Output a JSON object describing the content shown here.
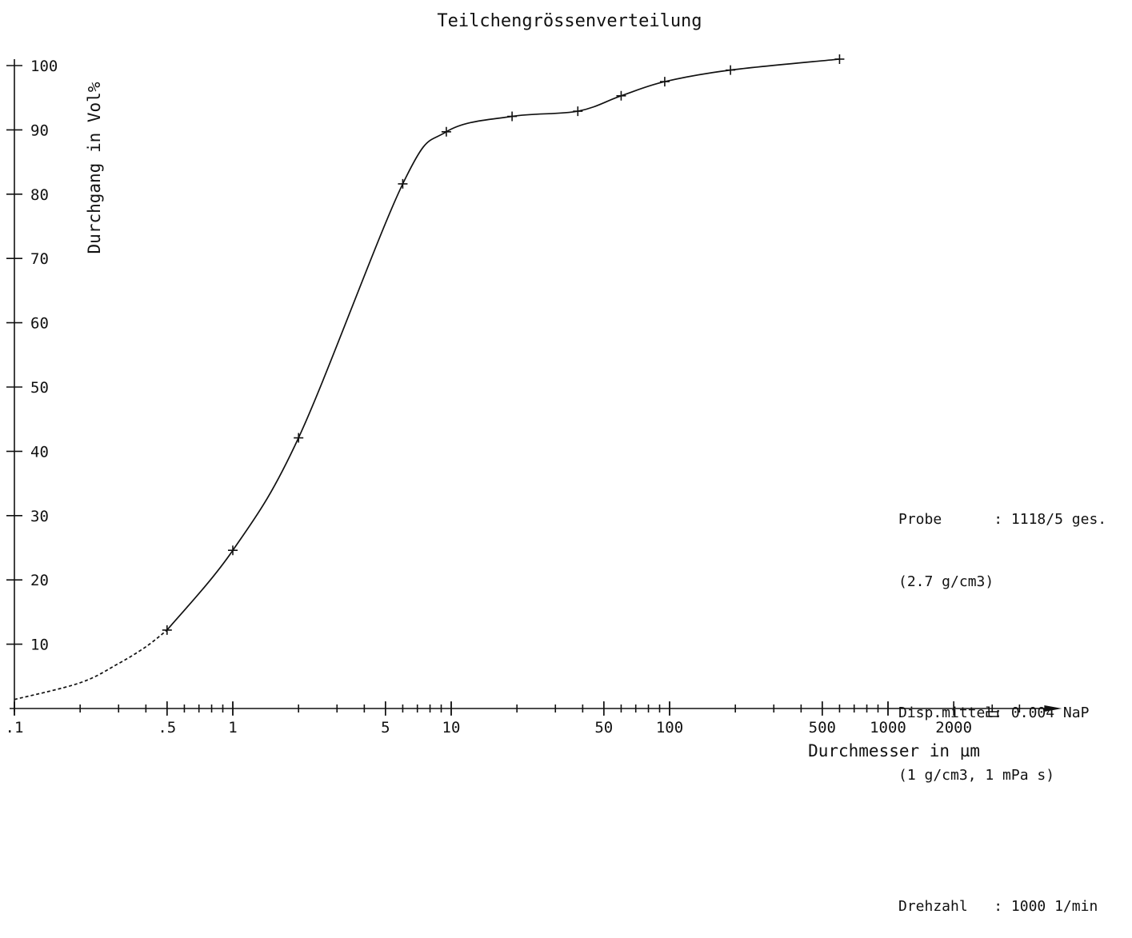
{
  "chart_data": {
    "type": "line",
    "title": "Teilchengrössenverteilung",
    "xlabel": "Durchmesser in µm",
    "ylabel": "Durchgang in Vol%",
    "xscale": "log",
    "xlim": [
      0.1,
      4000
    ],
    "ylim": [
      0,
      100
    ],
    "grid": false,
    "x_ticks": [
      ".1",
      ".5",
      "1",
      "5",
      "10",
      "50",
      "100",
      "500",
      "1000",
      "2000"
    ],
    "x_tick_values": [
      0.1,
      0.5,
      1,
      5,
      10,
      50,
      100,
      500,
      1000,
      2000
    ],
    "y_ticks": [
      "10",
      "20",
      "30",
      "40",
      "50",
      "60",
      "70",
      "80",
      "90",
      "100"
    ],
    "y_tick_values": [
      10,
      20,
      30,
      40,
      50,
      60,
      70,
      80,
      90,
      100
    ],
    "series": [
      {
        "style": "solid",
        "x": [
          0.5,
          1,
          2,
          6,
          9.5,
          19,
          38,
          60,
          95,
          190,
          600
        ],
        "y": [
          12.2,
          24.6,
          42.1,
          81.6,
          89.7,
          92.1,
          92.9,
          95.3,
          97.5,
          99.3,
          101.0
        ]
      },
      {
        "style": "dashed",
        "x": [
          0.1,
          0.2,
          0.3,
          0.4,
          0.5
        ],
        "y": [
          1.4,
          4.0,
          7.0,
          9.6,
          12.2
        ]
      }
    ]
  },
  "info": {
    "probe_label": "Probe",
    "probe_sep": ":",
    "probe_value": "1118/5 ges.",
    "probe_density": "(2.7 g/cm3)",
    "disp_label": "Disp.mittel:",
    "disp_value": "0.004 NaP",
    "disp_props": "(1 g/cm3, 1 mPa s)",
    "rpm_label": "Drehzahl",
    "rpm_sep": ":",
    "rpm_value": "1000 1/min"
  }
}
